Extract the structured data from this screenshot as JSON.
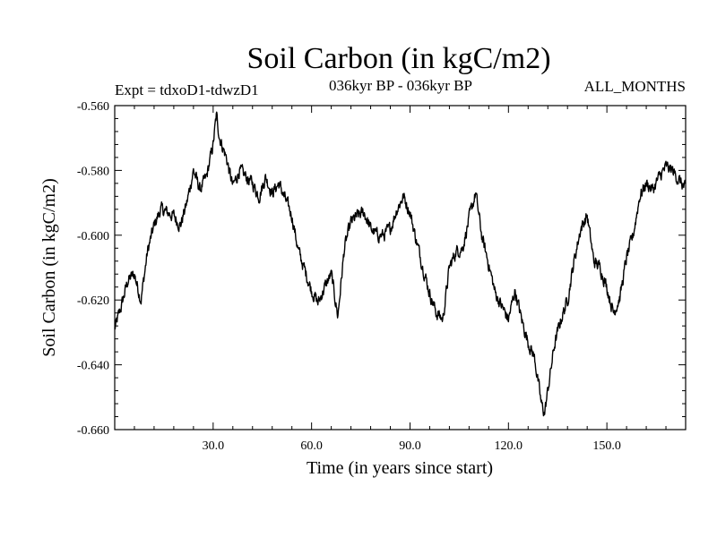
{
  "chart_data": {
    "type": "line",
    "title": "Soil Carbon (in kgC/m2)",
    "experiment_label": "Expt = tdxoD1-tdwzD1",
    "period_label": "036kyr BP - 036kyr BP",
    "months_label": "ALL_MONTHS",
    "xlabel": "Time (in years since start)",
    "ylabel": "Soil Carbon (in kgC/m2)",
    "xlim": [
      0,
      174
    ],
    "ylim": [
      -0.66,
      -0.56
    ],
    "x_ticks": [
      30,
      60,
      90,
      120,
      150
    ],
    "x_tick_labels": [
      "30.0",
      "60.0",
      "90.0",
      "120.0",
      "150.0"
    ],
    "y_ticks": [
      -0.66,
      -0.64,
      -0.62,
      -0.6,
      -0.58,
      -0.56
    ],
    "y_tick_labels": [
      "-0.660",
      "-0.640",
      "-0.620",
      "-0.600",
      "-0.580",
      "-0.560"
    ],
    "series": [
      {
        "name": "Soil Carbon",
        "color": "#000000",
        "x": [
          0,
          2,
          4,
          6,
          8,
          10,
          12,
          14,
          16,
          18,
          20,
          22,
          24,
          26,
          28,
          30,
          31,
          32,
          34,
          36,
          38,
          40,
          42,
          44,
          46,
          48,
          50,
          52,
          54,
          56,
          58,
          60,
          62,
          64,
          66,
          68,
          70,
          72,
          74,
          76,
          78,
          80,
          82,
          84,
          86,
          88,
          90,
          92,
          94,
          96,
          98,
          100,
          102,
          104,
          106,
          108,
          110,
          112,
          114,
          116,
          118,
          120,
          122,
          124,
          126,
          128,
          130,
          131,
          132,
          134,
          136,
          138,
          140,
          142,
          144,
          146,
          148,
          150,
          152,
          154,
          156,
          158,
          160,
          162,
          164,
          166,
          168,
          170,
          172,
          174
        ],
        "values": [
          -0.629,
          -0.622,
          -0.614,
          -0.612,
          -0.62,
          -0.605,
          -0.597,
          -0.592,
          -0.593,
          -0.594,
          -0.597,
          -0.59,
          -0.58,
          -0.586,
          -0.582,
          -0.572,
          -0.563,
          -0.57,
          -0.576,
          -0.585,
          -0.58,
          -0.582,
          -0.584,
          -0.588,
          -0.582,
          -0.587,
          -0.584,
          -0.589,
          -0.594,
          -0.605,
          -0.611,
          -0.617,
          -0.621,
          -0.616,
          -0.612,
          -0.625,
          -0.604,
          -0.596,
          -0.594,
          -0.593,
          -0.598,
          -0.6,
          -0.6,
          -0.598,
          -0.592,
          -0.588,
          -0.593,
          -0.602,
          -0.61,
          -0.618,
          -0.624,
          -0.626,
          -0.61,
          -0.605,
          -0.604,
          -0.595,
          -0.587,
          -0.601,
          -0.609,
          -0.618,
          -0.622,
          -0.626,
          -0.617,
          -0.626,
          -0.633,
          -0.638,
          -0.652,
          -0.655,
          -0.648,
          -0.634,
          -0.626,
          -0.62,
          -0.608,
          -0.598,
          -0.594,
          -0.608,
          -0.61,
          -0.616,
          -0.624,
          -0.619,
          -0.607,
          -0.6,
          -0.588,
          -0.584,
          -0.586,
          -0.582,
          -0.579,
          -0.58,
          -0.583,
          -0.586
        ]
      }
    ]
  }
}
